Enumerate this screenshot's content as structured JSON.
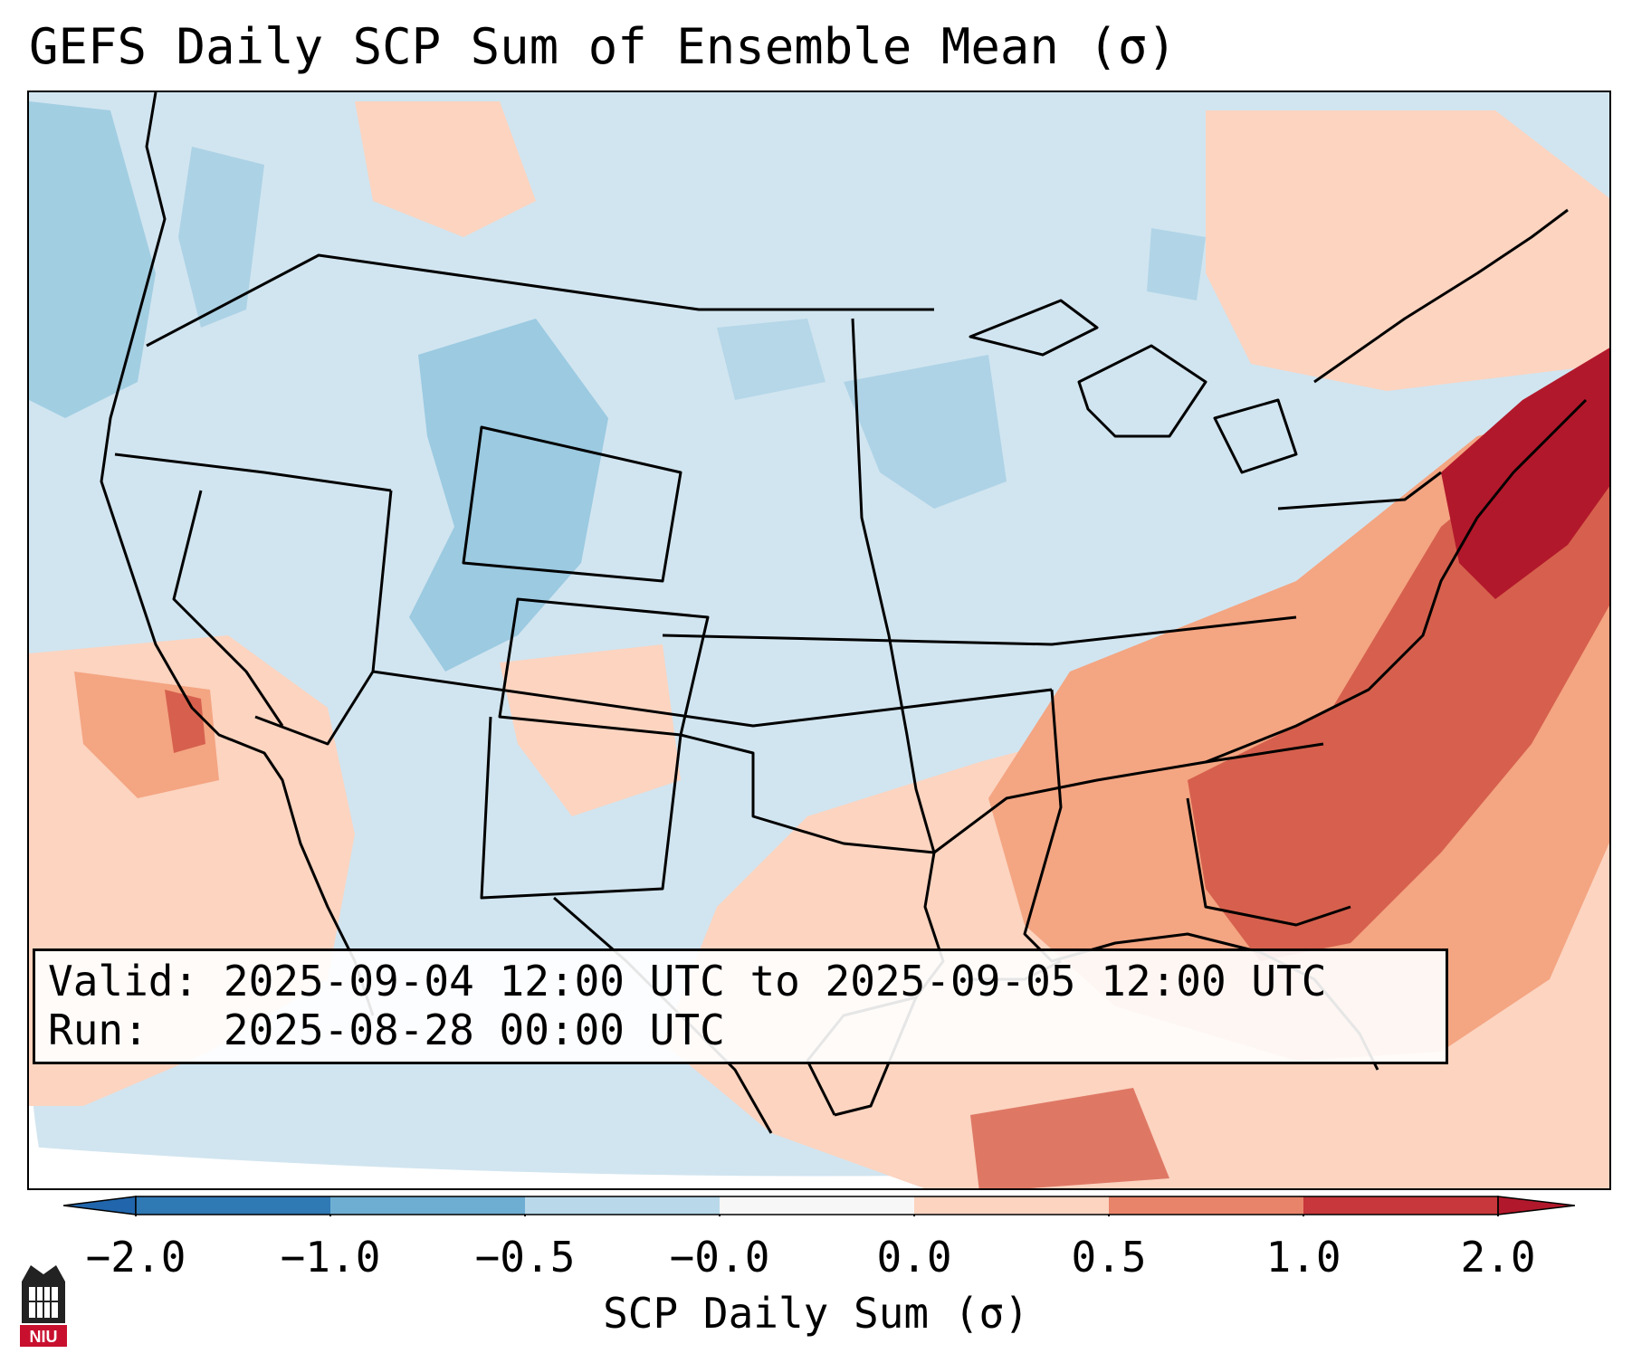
{
  "title": "GEFS Daily SCP Sum of Ensemble Mean (σ)",
  "info": {
    "valid_label": "Valid:",
    "valid_value": "2025-09-04 12:00 UTC to 2025-09-05 12:00 UTC",
    "run_label": "Run:",
    "run_value": "2025-08-28 00:00 UTC"
  },
  "colorbar": {
    "label": "SCP Daily Sum (σ)",
    "ticks": [
      "−2.0",
      "−1.0",
      "−0.5",
      "−0.0",
      "0.0",
      "0.5",
      "1.0",
      "2.0"
    ],
    "colors": [
      "#2f79b5",
      "#6eaed2",
      "#b9d9ea",
      "#f7f7f7",
      "#fcd4c0",
      "#e8846a",
      "#c7373b"
    ],
    "extend_low_color": "#2166ac",
    "extend_high_color": "#b2182b"
  },
  "map": {
    "background_color": "#d1e5f0",
    "regions": [
      {
        "name": "southeast-high-scp",
        "level": "1.0 to 2.0",
        "color": "#d6604d"
      },
      {
        "name": "atlantic-max-scp",
        "level": "above 2.0",
        "color": "#b2182b"
      },
      {
        "name": "gulf-moderate-scp",
        "level": "0.5 to 1.0",
        "color": "#f4a582"
      },
      {
        "name": "colorado-low-scp",
        "level": "-1.0 to -0.5",
        "color": "#92c5de"
      }
    ]
  },
  "logo": {
    "text": "NIU",
    "color": "#c8102e"
  }
}
